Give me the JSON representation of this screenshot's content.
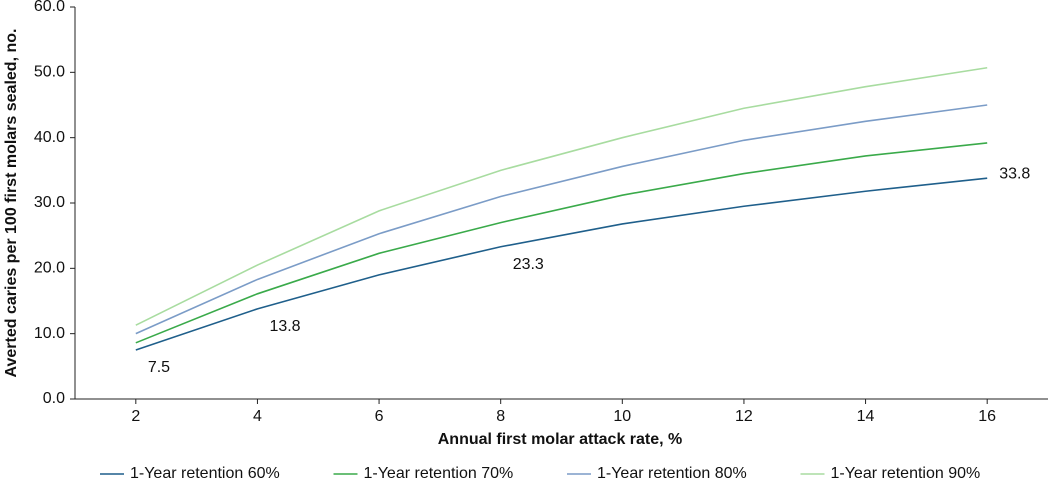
{
  "chart_data": {
    "type": "line",
    "x_label": "Annual first molar attack rate, %",
    "y_label": "Averted caries per 100 first molars sealed, no.",
    "x": [
      2,
      4,
      6,
      8,
      10,
      12,
      14,
      16
    ],
    "xlim": [
      1,
      17
    ],
    "xticks": [
      2,
      4,
      6,
      8,
      10,
      12,
      14,
      16
    ],
    "ylim": [
      0,
      60
    ],
    "yticks": [
      {
        "value": 0,
        "label": "0.0"
      },
      {
        "value": 10,
        "label": "10.0"
      },
      {
        "value": 20,
        "label": "20.0"
      },
      {
        "value": 30,
        "label": "30.0"
      },
      {
        "value": 40,
        "label": "40.0"
      },
      {
        "value": 50,
        "label": "50.0"
      },
      {
        "value": 60,
        "label": "60.0"
      }
    ],
    "grid": false,
    "legend": "bottom",
    "series": [
      {
        "name": "1-Year retention 60%",
        "color": "#1f5f8b",
        "values": [
          7.5,
          13.8,
          19.0,
          23.3,
          26.8,
          29.5,
          31.8,
          33.8
        ],
        "value_labels": [
          "7.5",
          "13.8",
          null,
          "23.3",
          null,
          null,
          null,
          "33.8"
        ]
      },
      {
        "name": "1-Year retention 70%",
        "color": "#3aaa4a",
        "values": [
          8.6,
          16.1,
          22.3,
          27.0,
          31.2,
          34.5,
          37.2,
          39.2
        ]
      },
      {
        "name": "1-Year retention 80%",
        "color": "#7b9cc7",
        "values": [
          10.0,
          18.3,
          25.3,
          31.0,
          35.6,
          39.6,
          42.5,
          45.0
        ]
      },
      {
        "name": "1-Year retention 90%",
        "color": "#a8dca0",
        "values": [
          11.3,
          20.5,
          28.8,
          35.0,
          40.0,
          44.5,
          47.8,
          50.7
        ]
      }
    ]
  }
}
